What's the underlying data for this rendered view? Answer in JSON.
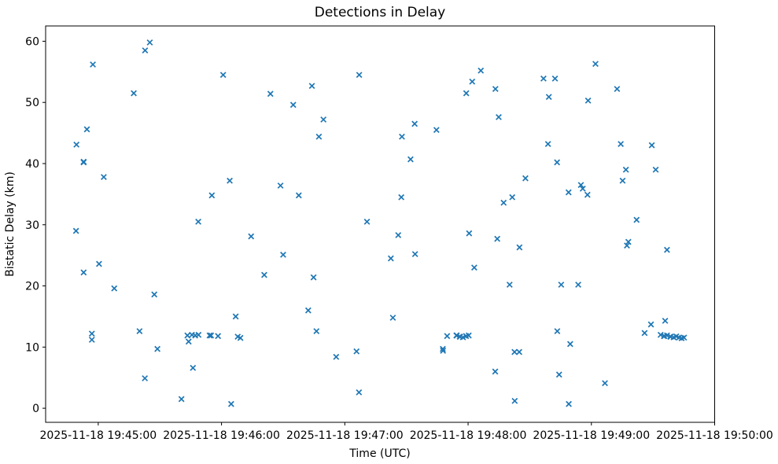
{
  "figure": {
    "title": "Detections in Delay",
    "xlabel": "Time (UTC)",
    "ylabel": "Bistatic Delay (km)"
  },
  "chart_data": {
    "type": "scatter",
    "title": "Detections in Delay",
    "xlabel": "Time (UTC)",
    "ylabel": "Bistatic Delay (km)",
    "grid": false,
    "legend": null,
    "marker": "x",
    "marker_color": "#1f77b4",
    "x_base": "2025-11-18 19:45:00",
    "x_unit": "seconds after 2025-11-18 19:45:00 UTC",
    "xlim_seconds": [
      -25.6,
      300
    ],
    "ylim": [
      -2.3,
      62.5
    ],
    "x_ticks": [
      {
        "t": 0,
        "label": "2025-11-18 19:45:00"
      },
      {
        "t": 60,
        "label": "2025-11-18 19:46:00"
      },
      {
        "t": 120,
        "label": "2025-11-18 19:47:00"
      },
      {
        "t": 180,
        "label": "2025-11-18 19:48:00"
      },
      {
        "t": 240,
        "label": "2025-11-18 19:49:00"
      },
      {
        "t": 300,
        "label": "2025-11-18 19:50:00"
      }
    ],
    "y_ticks": [
      0,
      10,
      20,
      30,
      40,
      50,
      60
    ],
    "points": [
      [
        -10.8,
        29.0
      ],
      [
        -10.6,
        43.1
      ],
      [
        -7.1,
        40.2
      ],
      [
        -7.1,
        40.3
      ],
      [
        -7.1,
        22.2
      ],
      [
        -5.5,
        45.6
      ],
      [
        -3.1,
        12.2
      ],
      [
        -3.1,
        11.2
      ],
      [
        -2.6,
        56.2
      ],
      [
        0.4,
        23.6
      ],
      [
        2.7,
        37.8
      ],
      [
        7.8,
        19.6
      ],
      [
        17.3,
        51.5
      ],
      [
        20.1,
        12.6
      ],
      [
        22.7,
        4.9
      ],
      [
        22.8,
        58.5
      ],
      [
        25.1,
        59.8
      ],
      [
        27.3,
        18.6
      ],
      [
        28.8,
        9.7
      ],
      [
        40.5,
        1.5
      ],
      [
        43.4,
        11.9
      ],
      [
        44.0,
        10.9
      ],
      [
        45.6,
        12.0
      ],
      [
        46.1,
        6.6
      ],
      [
        47.2,
        11.9
      ],
      [
        48.7,
        30.5
      ],
      [
        48.8,
        12.0
      ],
      [
        54.2,
        11.9
      ],
      [
        54.9,
        11.9
      ],
      [
        55.3,
        34.8
      ],
      [
        58.3,
        11.8
      ],
      [
        60.8,
        54.5
      ],
      [
        64.0,
        37.2
      ],
      [
        64.7,
        0.7
      ],
      [
        66.9,
        15.0
      ],
      [
        67.9,
        11.7
      ],
      [
        69.2,
        11.5
      ],
      [
        74.4,
        28.1
      ],
      [
        80.8,
        21.8
      ],
      [
        83.8,
        51.4
      ],
      [
        88.7,
        36.4
      ],
      [
        90.0,
        25.1
      ],
      [
        94.9,
        49.6
      ],
      [
        97.6,
        34.8
      ],
      [
        102.2,
        16.0
      ],
      [
        104.0,
        52.7
      ],
      [
        104.8,
        21.4
      ],
      [
        106.2,
        12.6
      ],
      [
        107.4,
        44.4
      ],
      [
        109.6,
        47.2
      ],
      [
        115.8,
        8.4
      ],
      [
        125.7,
        9.3
      ],
      [
        126.9,
        2.6
      ],
      [
        127.0,
        54.5
      ],
      [
        130.8,
        30.5
      ],
      [
        142.4,
        24.5
      ],
      [
        143.4,
        14.8
      ],
      [
        146.0,
        28.3
      ],
      [
        147.5,
        34.5
      ],
      [
        147.8,
        44.4
      ],
      [
        152.0,
        40.7
      ],
      [
        154.0,
        46.5
      ],
      [
        154.2,
        25.2
      ],
      [
        164.6,
        45.5
      ],
      [
        167.7,
        9.7
      ],
      [
        167.8,
        9.4
      ],
      [
        169.8,
        11.8
      ],
      [
        174.3,
        11.9
      ],
      [
        174.5,
        11.9
      ],
      [
        175.9,
        11.7
      ],
      [
        176.1,
        11.7
      ],
      [
        177.5,
        11.6
      ],
      [
        179.0,
        11.8
      ],
      [
        180.3,
        11.9
      ],
      [
        179.1,
        51.5
      ],
      [
        180.5,
        28.6
      ],
      [
        182.0,
        53.4
      ],
      [
        183.0,
        23.0
      ],
      [
        186.2,
        55.2
      ],
      [
        193.2,
        6.0
      ],
      [
        193.3,
        52.2
      ],
      [
        194.2,
        27.7
      ],
      [
        194.9,
        47.6
      ],
      [
        197.3,
        33.6
      ],
      [
        200.2,
        20.2
      ],
      [
        201.5,
        34.5
      ],
      [
        202.6,
        9.2
      ],
      [
        202.7,
        1.2
      ],
      [
        204.9,
        9.2
      ],
      [
        205.0,
        26.3
      ],
      [
        207.9,
        37.6
      ],
      [
        216.7,
        53.9
      ],
      [
        218.9,
        43.2
      ],
      [
        219.3,
        50.9
      ],
      [
        222.3,
        53.9
      ],
      [
        223.3,
        40.2
      ],
      [
        223.4,
        12.6
      ],
      [
        224.3,
        5.5
      ],
      [
        225.3,
        20.2
      ],
      [
        228.9,
        35.3
      ],
      [
        229.0,
        0.7
      ],
      [
        229.7,
        10.5
      ],
      [
        233.6,
        20.2
      ],
      [
        234.9,
        36.5
      ],
      [
        235.8,
        35.9
      ],
      [
        238.1,
        34.9
      ],
      [
        238.4,
        50.3
      ],
      [
        242.0,
        56.3
      ],
      [
        246.6,
        4.1
      ],
      [
        252.5,
        52.2
      ],
      [
        254.3,
        43.2
      ],
      [
        255.2,
        37.2
      ],
      [
        256.8,
        39.0
      ],
      [
        257.3,
        26.6
      ],
      [
        258.0,
        27.2
      ],
      [
        262.0,
        30.8
      ],
      [
        265.9,
        12.3
      ],
      [
        269.0,
        13.7
      ],
      [
        269.4,
        43.0
      ],
      [
        271.3,
        39.0
      ],
      [
        273.7,
        12.0
      ],
      [
        275.3,
        11.8
      ],
      [
        275.5,
        11.8
      ],
      [
        275.9,
        14.3
      ],
      [
        276.8,
        25.9
      ],
      [
        276.8,
        11.9
      ],
      [
        278.4,
        11.7
      ],
      [
        278.6,
        11.7
      ],
      [
        280.0,
        11.6
      ],
      [
        281.3,
        11.75
      ],
      [
        282.6,
        11.55
      ],
      [
        283.9,
        11.45
      ],
      [
        285.1,
        11.55
      ]
    ]
  }
}
